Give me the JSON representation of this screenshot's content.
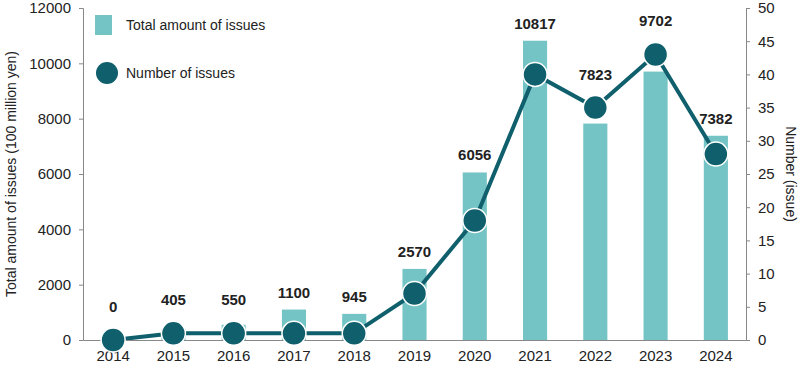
{
  "chart_data": {
    "type": "bar",
    "categories": [
      "2014",
      "2015",
      "2016",
      "2017",
      "2018",
      "2019",
      "2020",
      "2021",
      "2022",
      "2023",
      "2024"
    ],
    "y_label": "Total amount of issues (100 million yen)",
    "y2_label": "Number (issue)",
    "series": [
      {
        "name": "Total amount of issues",
        "type": "bar",
        "color": "#74c4c6",
        "values": [
          0,
          405,
          550,
          1100,
          945,
          2570,
          6056,
          10817,
          7823,
          9702,
          7382
        ]
      },
      {
        "name": "Number of issues",
        "type": "line",
        "axis": "y2",
        "color": "#0f5f6c",
        "marker": "circle",
        "values": [
          0,
          1,
          1,
          1,
          1,
          7,
          18,
          40,
          35,
          43,
          28
        ]
      }
    ],
    "ylim": [
      0,
      12000
    ],
    "yticks": [
      0,
      2000,
      4000,
      6000,
      8000,
      10000,
      12000
    ],
    "y2lim": [
      0,
      50
    ],
    "y2ticks": [
      0,
      5,
      10,
      15,
      20,
      25,
      30,
      35,
      40,
      45,
      50
    ],
    "data_labels": true,
    "legend": "top-left",
    "grid": false
  }
}
